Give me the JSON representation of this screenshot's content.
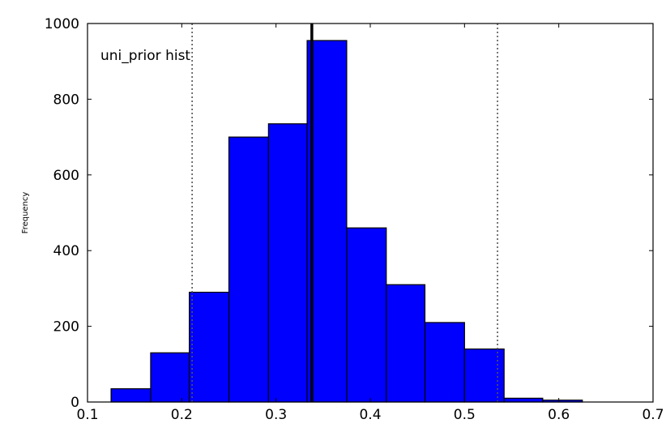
{
  "chart_data": {
    "type": "bar",
    "title": "uni_prior hist",
    "xlabel": "",
    "ylabel": "Frequency",
    "xlim": [
      0.1,
      0.7
    ],
    "ylim": [
      0,
      1000
    ],
    "x_ticks": [
      0.1,
      0.2,
      0.3,
      0.4,
      0.5,
      0.6,
      0.7
    ],
    "x_tick_labels": [
      "0.1",
      "0.2",
      "0.3",
      "0.4",
      "0.5",
      "0.6",
      "0.7"
    ],
    "y_ticks": [
      0,
      200,
      400,
      600,
      800,
      1000
    ],
    "y_tick_labels": [
      "0",
      "200",
      "400",
      "600",
      "800",
      "1000"
    ],
    "bins": [
      {
        "x0": 0.125,
        "x1": 0.167,
        "value": 35
      },
      {
        "x0": 0.167,
        "x1": 0.208,
        "value": 130
      },
      {
        "x0": 0.208,
        "x1": 0.25,
        "value": 290
      },
      {
        "x0": 0.25,
        "x1": 0.292,
        "value": 700
      },
      {
        "x0": 0.292,
        "x1": 0.333,
        "value": 735
      },
      {
        "x0": 0.333,
        "x1": 0.375,
        "value": 955
      },
      {
        "x0": 0.375,
        "x1": 0.417,
        "value": 460
      },
      {
        "x0": 0.417,
        "x1": 0.458,
        "value": 310
      },
      {
        "x0": 0.458,
        "x1": 0.5,
        "value": 210
      },
      {
        "x0": 0.5,
        "x1": 0.542,
        "value": 140
      },
      {
        "x0": 0.542,
        "x1": 0.583,
        "value": 10
      },
      {
        "x0": 0.583,
        "x1": 0.625,
        "value": 5
      }
    ],
    "bar_color": "#0000ff",
    "vlines": [
      {
        "x": 0.211,
        "style": "dotted",
        "color": "#555555"
      },
      {
        "x": 0.338,
        "style": "solid",
        "color": "#000000"
      },
      {
        "x": 0.535,
        "style": "dotted",
        "color": "#555555"
      }
    ],
    "grid": false
  }
}
